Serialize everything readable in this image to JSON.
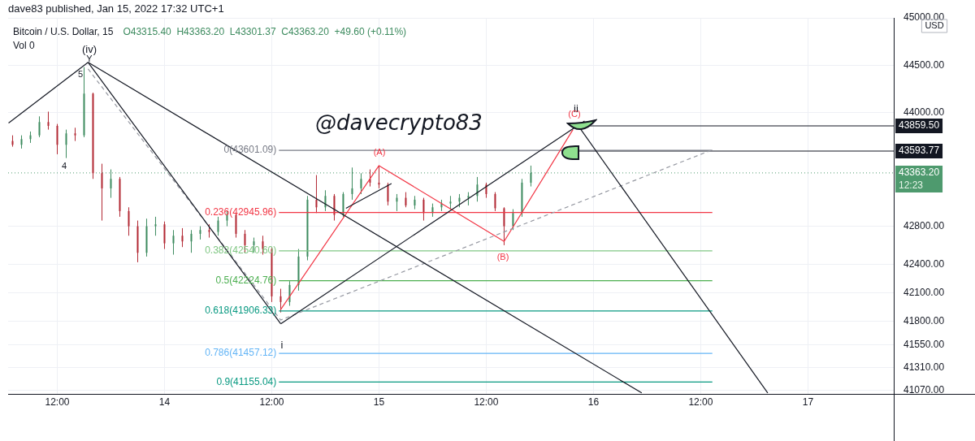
{
  "chart_data": {
    "type": "candlestick",
    "title": "Bitcoin / U.S. Dollar, 15",
    "subtitle": "O43315.40  H43363.20  L43301.37  C43363.20  +49.60 (+0.11%)",
    "ylabel": "USD",
    "annotations": [
      "dave83 published, Jan 15, 2022 17:32 UTC+1",
      "Vol 0",
      "@davecrypto83",
      "(iv)",
      "Y",
      "5",
      "4",
      "i",
      "ii",
      "(A)",
      "(B)",
      "(C)",
      "12:23"
    ],
    "x": [
      "2022-01-13T07:00",
      "2022-01-13T08:00",
      "2022-01-13T09:00",
      "2022-01-13T10:00",
      "2022-01-13T11:00",
      "2022-01-13T12:00",
      "2022-01-13T13:00",
      "2022-01-13T14:00",
      "2022-01-13T15:00",
      "2022-01-13T16:00",
      "2022-01-13T17:00",
      "2022-01-13T18:00",
      "2022-01-13T19:00",
      "2022-01-13T20:00",
      "2022-01-13T21:00",
      "2022-01-13T22:00",
      "2022-01-13T23:00",
      "2022-01-14T00:00",
      "2022-01-14T01:00",
      "2022-01-14T02:00",
      "2022-01-14T03:00",
      "2022-01-14T04:00",
      "2022-01-14T05:00",
      "2022-01-14T06:00",
      "2022-01-14T07:00",
      "2022-01-14T08:00",
      "2022-01-14T09:00",
      "2022-01-14T10:00",
      "2022-01-14T11:00",
      "2022-01-14T12:00",
      "2022-01-14T13:00",
      "2022-01-14T14:00",
      "2022-01-14T15:00",
      "2022-01-14T16:00",
      "2022-01-14T17:00",
      "2022-01-14T18:00",
      "2022-01-14T19:00",
      "2022-01-14T20:00",
      "2022-01-14T21:00",
      "2022-01-14T22:00",
      "2022-01-14T23:00",
      "2022-01-15T00:00",
      "2022-01-15T01:00",
      "2022-01-15T02:00",
      "2022-01-15T03:00",
      "2022-01-15T04:00",
      "2022-01-15T05:00",
      "2022-01-15T06:00",
      "2022-01-15T07:00",
      "2022-01-15T08:00",
      "2022-01-15T09:00",
      "2022-01-15T10:00",
      "2022-01-15T11:00",
      "2022-01-15T12:00",
      "2022-01-15T13:00",
      "2022-01-15T14:00",
      "2022-01-15T15:00",
      "2022-01-15T16:00",
      "2022-01-15T17:00"
    ],
    "ohlc": [
      [
        43700,
        43760,
        43640,
        43660
      ],
      [
        43660,
        43760,
        43620,
        43720
      ],
      [
        43720,
        43800,
        43680,
        43760
      ],
      [
        43760,
        43960,
        43740,
        43900
      ],
      [
        43900,
        44010,
        43820,
        43860
      ],
      [
        43860,
        43880,
        43560,
        43660
      ],
      [
        43660,
        43820,
        43520,
        43780
      ],
      [
        43780,
        43840,
        43700,
        43760
      ],
      [
        43760,
        44480,
        43740,
        44200
      ],
      [
        44200,
        44210,
        43300,
        43360
      ],
      [
        43360,
        43460,
        42860,
        43200
      ],
      [
        43200,
        43400,
        43100,
        43300
      ],
      [
        43300,
        43320,
        42900,
        42960
      ],
      [
        42960,
        43000,
        42700,
        42800
      ],
      [
        42800,
        42860,
        42420,
        42520
      ],
      [
        42520,
        42880,
        42480,
        42800
      ],
      [
        42800,
        42900,
        42700,
        42820
      ],
      [
        42820,
        42850,
        42560,
        42620
      ],
      [
        42620,
        42760,
        42500,
        42700
      ],
      [
        42700,
        42780,
        42580,
        42640
      ],
      [
        42640,
        42760,
        42520,
        42720
      ],
      [
        42720,
        42800,
        42660,
        42760
      ],
      [
        42760,
        42820,
        42680,
        42740
      ],
      [
        42740,
        42900,
        42700,
        42860
      ],
      [
        42860,
        42960,
        42800,
        42920
      ],
      [
        42920,
        42940,
        42680,
        42720
      ],
      [
        42720,
        42760,
        42520,
        42600
      ],
      [
        42600,
        42680,
        42520,
        42640
      ],
      [
        42640,
        42700,
        42500,
        42560
      ],
      [
        42560,
        42580,
        42000,
        42060
      ],
      [
        42060,
        42140,
        41890,
        42000
      ],
      [
        42000,
        42220,
        41960,
        42180
      ],
      [
        42180,
        42560,
        42120,
        42480
      ],
      [
        42480,
        43120,
        42440,
        43080
      ],
      [
        43080,
        43340,
        42940,
        43000
      ],
      [
        43000,
        43180,
        42960,
        43120
      ],
      [
        43120,
        43140,
        42860,
        42920
      ],
      [
        42920,
        43160,
        42900,
        43140
      ],
      [
        43140,
        43420,
        43080,
        43200
      ],
      [
        43200,
        43360,
        43140,
        43300
      ],
      [
        43300,
        43400,
        43220,
        43260
      ],
      [
        43260,
        43440,
        43200,
        43240
      ],
      [
        43240,
        43260,
        43020,
        43060
      ],
      [
        43060,
        43140,
        42960,
        43100
      ],
      [
        43100,
        43160,
        43000,
        43020
      ],
      [
        43020,
        43120,
        42980,
        43080
      ],
      [
        43080,
        43100,
        42860,
        42940
      ],
      [
        42940,
        43040,
        42900,
        43000
      ],
      [
        43000,
        43080,
        42960,
        43040
      ],
      [
        43040,
        43120,
        42980,
        43060
      ],
      [
        43060,
        43140,
        43000,
        43100
      ],
      [
        43100,
        43160,
        43020,
        43120
      ],
      [
        43120,
        43320,
        43060,
        43240
      ],
      [
        43240,
        43260,
        43100,
        43140
      ],
      [
        43140,
        43160,
        42960,
        42990
      ],
      [
        42990,
        43000,
        42600,
        42800
      ],
      [
        42800,
        42980,
        42760,
        42940
      ],
      [
        42940,
        43300,
        42900,
        43260
      ],
      [
        43260,
        43440,
        43220,
        43363.2
      ]
    ],
    "colors": [
      "#b22833",
      "#3d8b5f",
      "#3d8b5f",
      "#3d8b5f",
      "#b22833",
      "#b22833",
      "#3d8b5f",
      "#b22833",
      "#3d8b5f",
      "#b22833",
      "#b22833",
      "#3d8b5f",
      "#b22833",
      "#b22833",
      "#b22833",
      "#3d8b5f",
      "#3d8b5f",
      "#b22833",
      "#3d8b5f",
      "#b22833",
      "#3d8b5f",
      "#3d8b5f",
      "#b22833",
      "#3d8b5f",
      "#3d8b5f",
      "#b22833",
      "#b22833",
      "#3d8b5f",
      "#b22833",
      "#b22833",
      "#b22833",
      "#3d8b5f",
      "#3d8b5f",
      "#3d8b5f",
      "#b22833",
      "#3d8b5f",
      "#b22833",
      "#3d8b5f",
      "#3d8b5f",
      "#3d8b5f",
      "#b22833",
      "#b22833",
      "#b22833",
      "#3d8b5f",
      "#b22833",
      "#3d8b5f",
      "#b22833",
      "#3d8b5f",
      "#3d8b5f",
      "#3d8b5f",
      "#3d8b5f",
      "#3d8b5f",
      "#3d8b5f",
      "#b22833",
      "#b22833",
      "#b22833",
      "#3d8b5f",
      "#3d8b5f",
      "#3d8b5f"
    ],
    "series": [
      {
        "type": "line",
        "color": "#131722",
        "x": [
          "2022-01-13T06:33",
          "2022-01-13T15:27"
        ],
        "values": [
          43890,
          44530
        ]
      },
      {
        "type": "line",
        "color": "#131722",
        "x": [
          "2022-01-13T15:27",
          "2022-01-14T13:00"
        ],
        "values": [
          44530,
          41770
        ]
      },
      {
        "type": "line",
        "color": "#131722",
        "x": [
          "2022-01-13T15:27",
          "2022-01-16T05:24"
        ],
        "values": [
          44530,
          41040
        ]
      },
      {
        "type": "line",
        "color": "#131722",
        "x": [
          "2022-01-14T13:00",
          "2022-01-15T23:00"
        ],
        "values": [
          41770,
          43910
        ]
      },
      {
        "type": "line",
        "color": "#131722",
        "x": [
          "2022-01-15T22:36",
          "2022-01-16T19:30"
        ],
        "values": [
          43820,
          41040
        ]
      },
      {
        "type": "line",
        "color": "#131722",
        "x": [
          "2022-01-14T20:18",
          "2022-01-15T01:24"
        ],
        "values": [
          42990,
          43250
        ]
      },
      {
        "type": "line",
        "color": "#9598a1",
        "line_style": "dashed",
        "x": [
          "2022-01-13T15:27",
          "2022-01-14T13:00",
          "2022-01-16T13:06"
        ],
        "values": [
          44460,
          41810,
          43600
        ]
      },
      {
        "type": "line",
        "color": "#f23645",
        "x": [
          "2022-01-14T13:00",
          "2022-01-15T00:00",
          "2022-01-15T14:00",
          "2022-01-15T21:42"
        ],
        "values": [
          41920,
          43440,
          42640,
          43820
        ]
      },
      {
        "type": "line",
        "name": "0(43601.09)",
        "color": "#787b86",
        "x": [
          "2022-01-14T12:48",
          "2022-01-16T13:18"
        ],
        "values": [
          43601.09,
          43601.09
        ]
      },
      {
        "type": "line",
        "name": "0.236(42945.96)",
        "color": "#f23645",
        "x": [
          "2022-01-14T12:48",
          "2022-01-16T13:18"
        ],
        "values": [
          42945.96,
          42945.96
        ]
      },
      {
        "type": "line",
        "name": "0.382(42540.60)",
        "color": "#81c784",
        "x": [
          "2022-01-14T12:48",
          "2022-01-16T13:18"
        ],
        "values": [
          42540.6,
          42540.6
        ]
      },
      {
        "type": "line",
        "name": "0.5(42224.76)",
        "color": "#4caf50",
        "x": [
          "2022-01-14T12:48",
          "2022-01-16T13:18"
        ],
        "values": [
          42224.76,
          42224.76
        ]
      },
      {
        "type": "line",
        "name": "0.618(41906.33)",
        "color": "#089981",
        "x": [
          "2022-01-14T12:48",
          "2022-01-16T13:18"
        ],
        "values": [
          41906.33,
          41906.33
        ]
      },
      {
        "type": "line",
        "name": "0.786(41457.12)",
        "color": "#64b5f6",
        "x": [
          "2022-01-14T12:48",
          "2022-01-16T13:18"
        ],
        "values": [
          41457.12,
          41457.12
        ]
      },
      {
        "type": "line",
        "name": "0.9(41155.04)",
        "color": "#089981",
        "x": [
          "2022-01-14T12:48",
          "2022-01-16T13:18"
        ],
        "values": [
          41155.04,
          41155.04
        ]
      },
      {
        "type": "line",
        "color": "#131722",
        "x": [
          "2022-01-15T23:00",
          "2022-01-17T09:36"
        ],
        "values": [
          43859.5,
          43859.5
        ],
        "value_labels": [
          null,
          "43859.50"
        ]
      },
      {
        "type": "line",
        "color": "#131722",
        "x": [
          "2022-01-15T21:12",
          "2022-01-17T09:36"
        ],
        "values": [
          43593.77,
          43593.77
        ],
        "value_labels": [
          null,
          "43593.77"
        ]
      }
    ],
    "ref_lines": [
      {
        "axis": "y",
        "value": 43363.2,
        "label": "43363.20",
        "color": "#4e9a6e",
        "line_style": "dotted"
      }
    ],
    "xlim": [
      "2022-01-13T06:30",
      "2022-01-17T09:36"
    ],
    "ylim": [
      41030,
      45000
    ],
    "xticks": [
      {
        "value": "2022-01-13T12:00",
        "label": "12:00"
      },
      {
        "value": "2022-01-14",
        "label": "14"
      },
      {
        "value": "2022-01-14T12:00",
        "label": "12:00"
      },
      {
        "value": "2022-01-15",
        "label": "15"
      },
      {
        "value": "2022-01-15T12:00",
        "label": "12:00"
      },
      {
        "value": "2022-01-16",
        "label": "16"
      },
      {
        "value": "2022-01-16T12:00",
        "label": "12:00"
      },
      {
        "value": "2022-01-17",
        "label": "17"
      }
    ],
    "yticks": [
      {
        "value": 45000,
        "label": "45000.00"
      },
      {
        "value": 44500,
        "label": "44500.00"
      },
      {
        "value": 44000,
        "label": "44000.00"
      },
      {
        "value": 42800,
        "label": "42800.00"
      },
      {
        "value": 42400,
        "label": "42400.00"
      },
      {
        "value": 42100,
        "label": "42100.00"
      },
      {
        "value": 41800,
        "label": "41800.00"
      },
      {
        "value": 41550,
        "label": "41550.00"
      },
      {
        "value": 41310,
        "label": "41310.00"
      },
      {
        "value": 41070,
        "label": "41070.00"
      }
    ],
    "grid": true,
    "marker": "none"
  }
}
